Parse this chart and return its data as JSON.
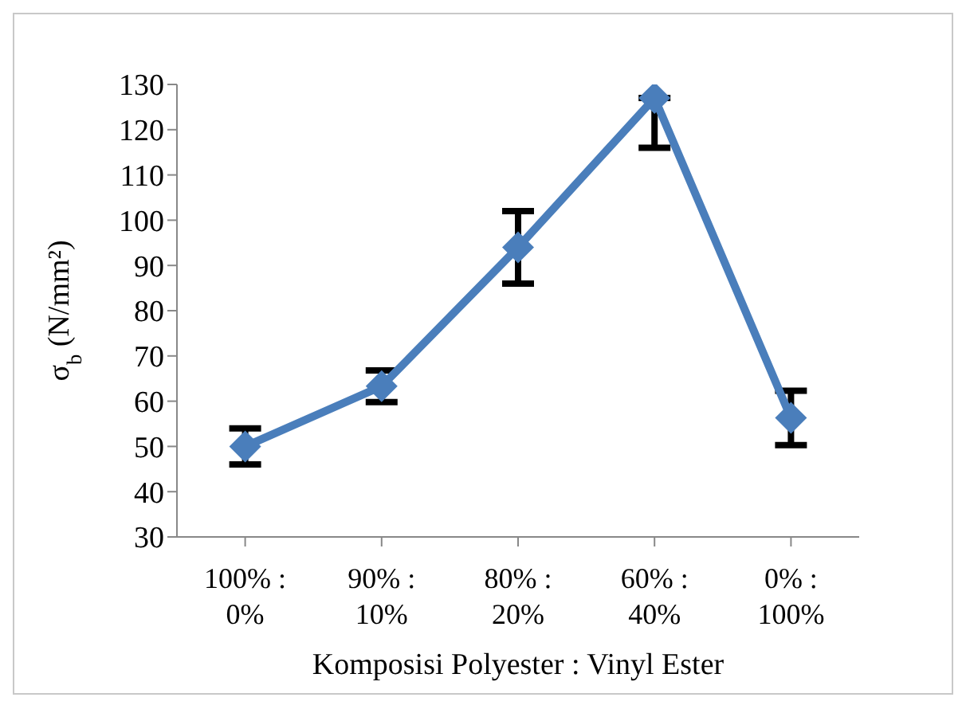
{
  "chart_data": {
    "type": "line",
    "ylabel": "σ$_{b}$ (N/mm²)",
    "xlabel": "Komposisi Polyester : Vinyl Ester",
    "categories": [
      "100% : 0%",
      "90% : 10%",
      "80% : 20%",
      "60% : 40%",
      "0% : 100%"
    ],
    "series": [
      {
        "color": "#4a7ebb",
        "values": [
          50,
          63.3,
          94,
          127,
          56.3
        ],
        "errors": [
          4,
          3.5,
          8,
          [
            116,
            127
          ],
          6
        ]
      }
    ],
    "ylim": [
      30,
      130
    ],
    "yticks": [
      30,
      40,
      50,
      60,
      70,
      80,
      90,
      100,
      110,
      120,
      130
    ],
    "grid": false,
    "legend": false,
    "marker": "diamond",
    "line_style": "solid"
  }
}
